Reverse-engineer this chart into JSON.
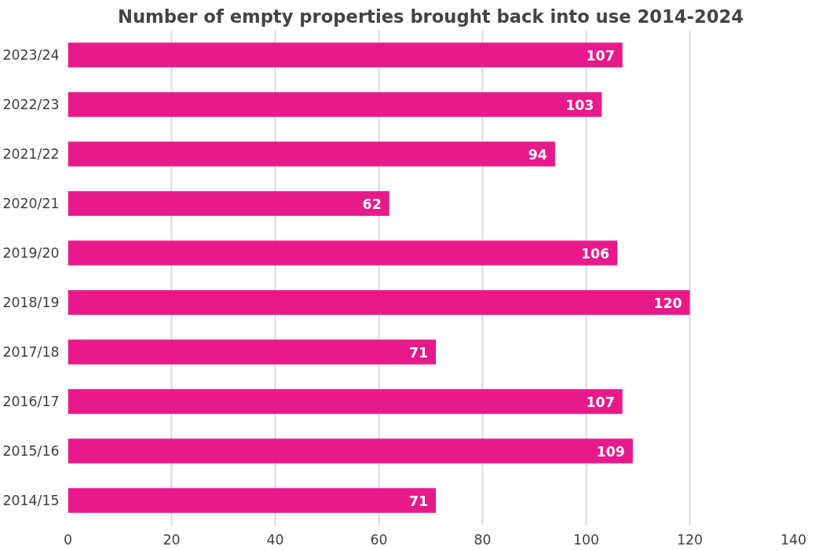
{
  "chart_data": {
    "type": "bar",
    "orientation": "horizontal",
    "title": "Number of empty properties brought back into use 2014-2024",
    "categories": [
      "2023/24",
      "2022/23",
      "2021/22",
      "2020/21",
      "2019/20",
      "2018/19",
      "2017/18",
      "2016/17",
      "2015/16",
      "2014/15"
    ],
    "values": [
      107,
      103,
      94,
      62,
      106,
      120,
      71,
      107,
      109,
      71
    ],
    "color": "#e8198b",
    "xlim": [
      0,
      140
    ],
    "xticks": [
      0,
      20,
      40,
      60,
      80,
      100,
      120,
      140
    ],
    "grid": "x",
    "data_labels": true
  }
}
